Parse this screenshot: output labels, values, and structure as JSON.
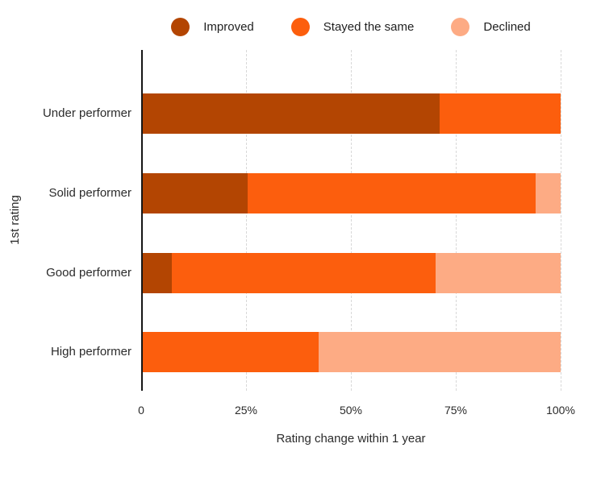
{
  "colors": {
    "improved": "#B34502",
    "stayed": "#FC5E0D",
    "declined": "#FDAB84",
    "axis_line": "#161616",
    "gridline": "#D8D8D8",
    "text": "#2B2B2B",
    "background": "#FFFFFF"
  },
  "legend": {
    "items": [
      {
        "label": "Improved",
        "color_key": "improved"
      },
      {
        "label": "Stayed the same",
        "color_key": "stayed"
      },
      {
        "label": "Declined",
        "color_key": "declined"
      }
    ]
  },
  "chart_data": {
    "type": "bar",
    "orientation": "horizontal",
    "stacked": true,
    "categories": [
      "Under performer",
      "Solid performer",
      "Good performer",
      "High performer"
    ],
    "series": [
      {
        "name": "Improved",
        "color_key": "improved",
        "values": [
          71,
          25,
          7,
          0
        ]
      },
      {
        "name": "Stayed the same",
        "color_key": "stayed",
        "values": [
          29,
          69,
          63,
          42
        ]
      },
      {
        "name": "Declined",
        "color_key": "declined",
        "values": [
          0,
          6,
          30,
          58
        ]
      }
    ],
    "xlabel": "Rating change within 1 year",
    "ylabel": "1st rating",
    "xlim": [
      0,
      100
    ],
    "x_ticks": [
      {
        "label": "0",
        "value": 0
      },
      {
        "label": "25%",
        "value": 25
      },
      {
        "label": "50%",
        "value": 50
      },
      {
        "label": "75%",
        "value": 75
      },
      {
        "label": "100%",
        "value": 100
      }
    ],
    "grid": "vertical-dashed",
    "legend_position": "top"
  }
}
